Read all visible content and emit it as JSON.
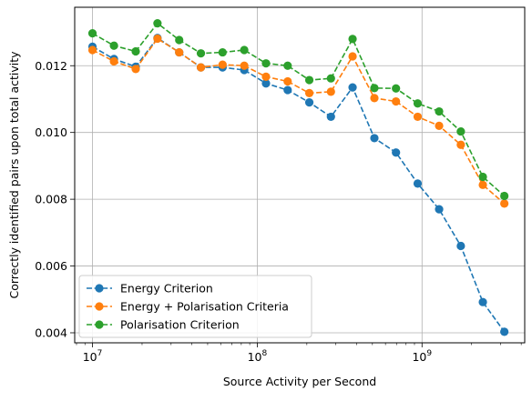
{
  "chart_data": {
    "type": "line",
    "title": "",
    "xlabel": "Source Activity per Second",
    "ylabel": "Correctly identified pairs upon total activity",
    "xscale": "log",
    "xlim": [
      7800000.0,
      4200000000.0
    ],
    "ylim": [
      0.0037,
      0.01375
    ],
    "grid": true,
    "legend_position": "lower-left",
    "x_ticks": [
      {
        "value": 10000000.0,
        "base": "10",
        "exp": "7"
      },
      {
        "value": 100000000.0,
        "base": "10",
        "exp": "8"
      },
      {
        "value": 1000000000.0,
        "base": "10",
        "exp": "9"
      }
    ],
    "y_ticks": [
      {
        "value": 0.004,
        "label": "0.004"
      },
      {
        "value": 0.006,
        "label": "0.006"
      },
      {
        "value": 0.008,
        "label": "0.008"
      },
      {
        "value": 0.01,
        "label": "0.010"
      },
      {
        "value": 0.012,
        "label": "0.012"
      }
    ],
    "x": [
      10000000.0,
      13500000.0,
      18300000.0,
      24800000.0,
      33600000.0,
      45500000.0,
      61600000.0,
      83400000.0,
      113000000.0,
      153000000.0,
      207000000.0,
      280000000.0,
      379000000.0,
      514000000.0,
      695000000.0,
      941000000.0,
      1270000000.0,
      1720000000.0,
      2340000000.0,
      3160000000.0
    ],
    "series": [
      {
        "name": "Energy Criterion",
        "color": "#1f77b4",
        "values": [
          0.01257,
          0.0122,
          0.01197,
          0.01283,
          0.0124,
          0.01195,
          0.01195,
          0.01187,
          0.01147,
          0.01127,
          0.0109,
          0.01047,
          0.01135,
          0.00983,
          0.0094,
          0.00847,
          0.0077,
          0.0066,
          0.00492,
          0.00403
        ]
      },
      {
        "name": "Energy + Polarisation Criteria",
        "color": "#ff7f0e",
        "values": [
          0.01247,
          0.01213,
          0.0119,
          0.01281,
          0.0124,
          0.01195,
          0.01203,
          0.012,
          0.01167,
          0.01153,
          0.01118,
          0.01122,
          0.01228,
          0.01103,
          0.01093,
          0.01047,
          0.0102,
          0.00963,
          0.00843,
          0.00787
        ]
      },
      {
        "name": "Polarisation Criterion",
        "color": "#2ca02c",
        "values": [
          0.01297,
          0.0126,
          0.01243,
          0.01327,
          0.01277,
          0.01237,
          0.0124,
          0.01247,
          0.01207,
          0.012,
          0.01157,
          0.01162,
          0.0128,
          0.01133,
          0.01132,
          0.01087,
          0.01063,
          0.01003,
          0.00867,
          0.0081
        ]
      }
    ]
  }
}
